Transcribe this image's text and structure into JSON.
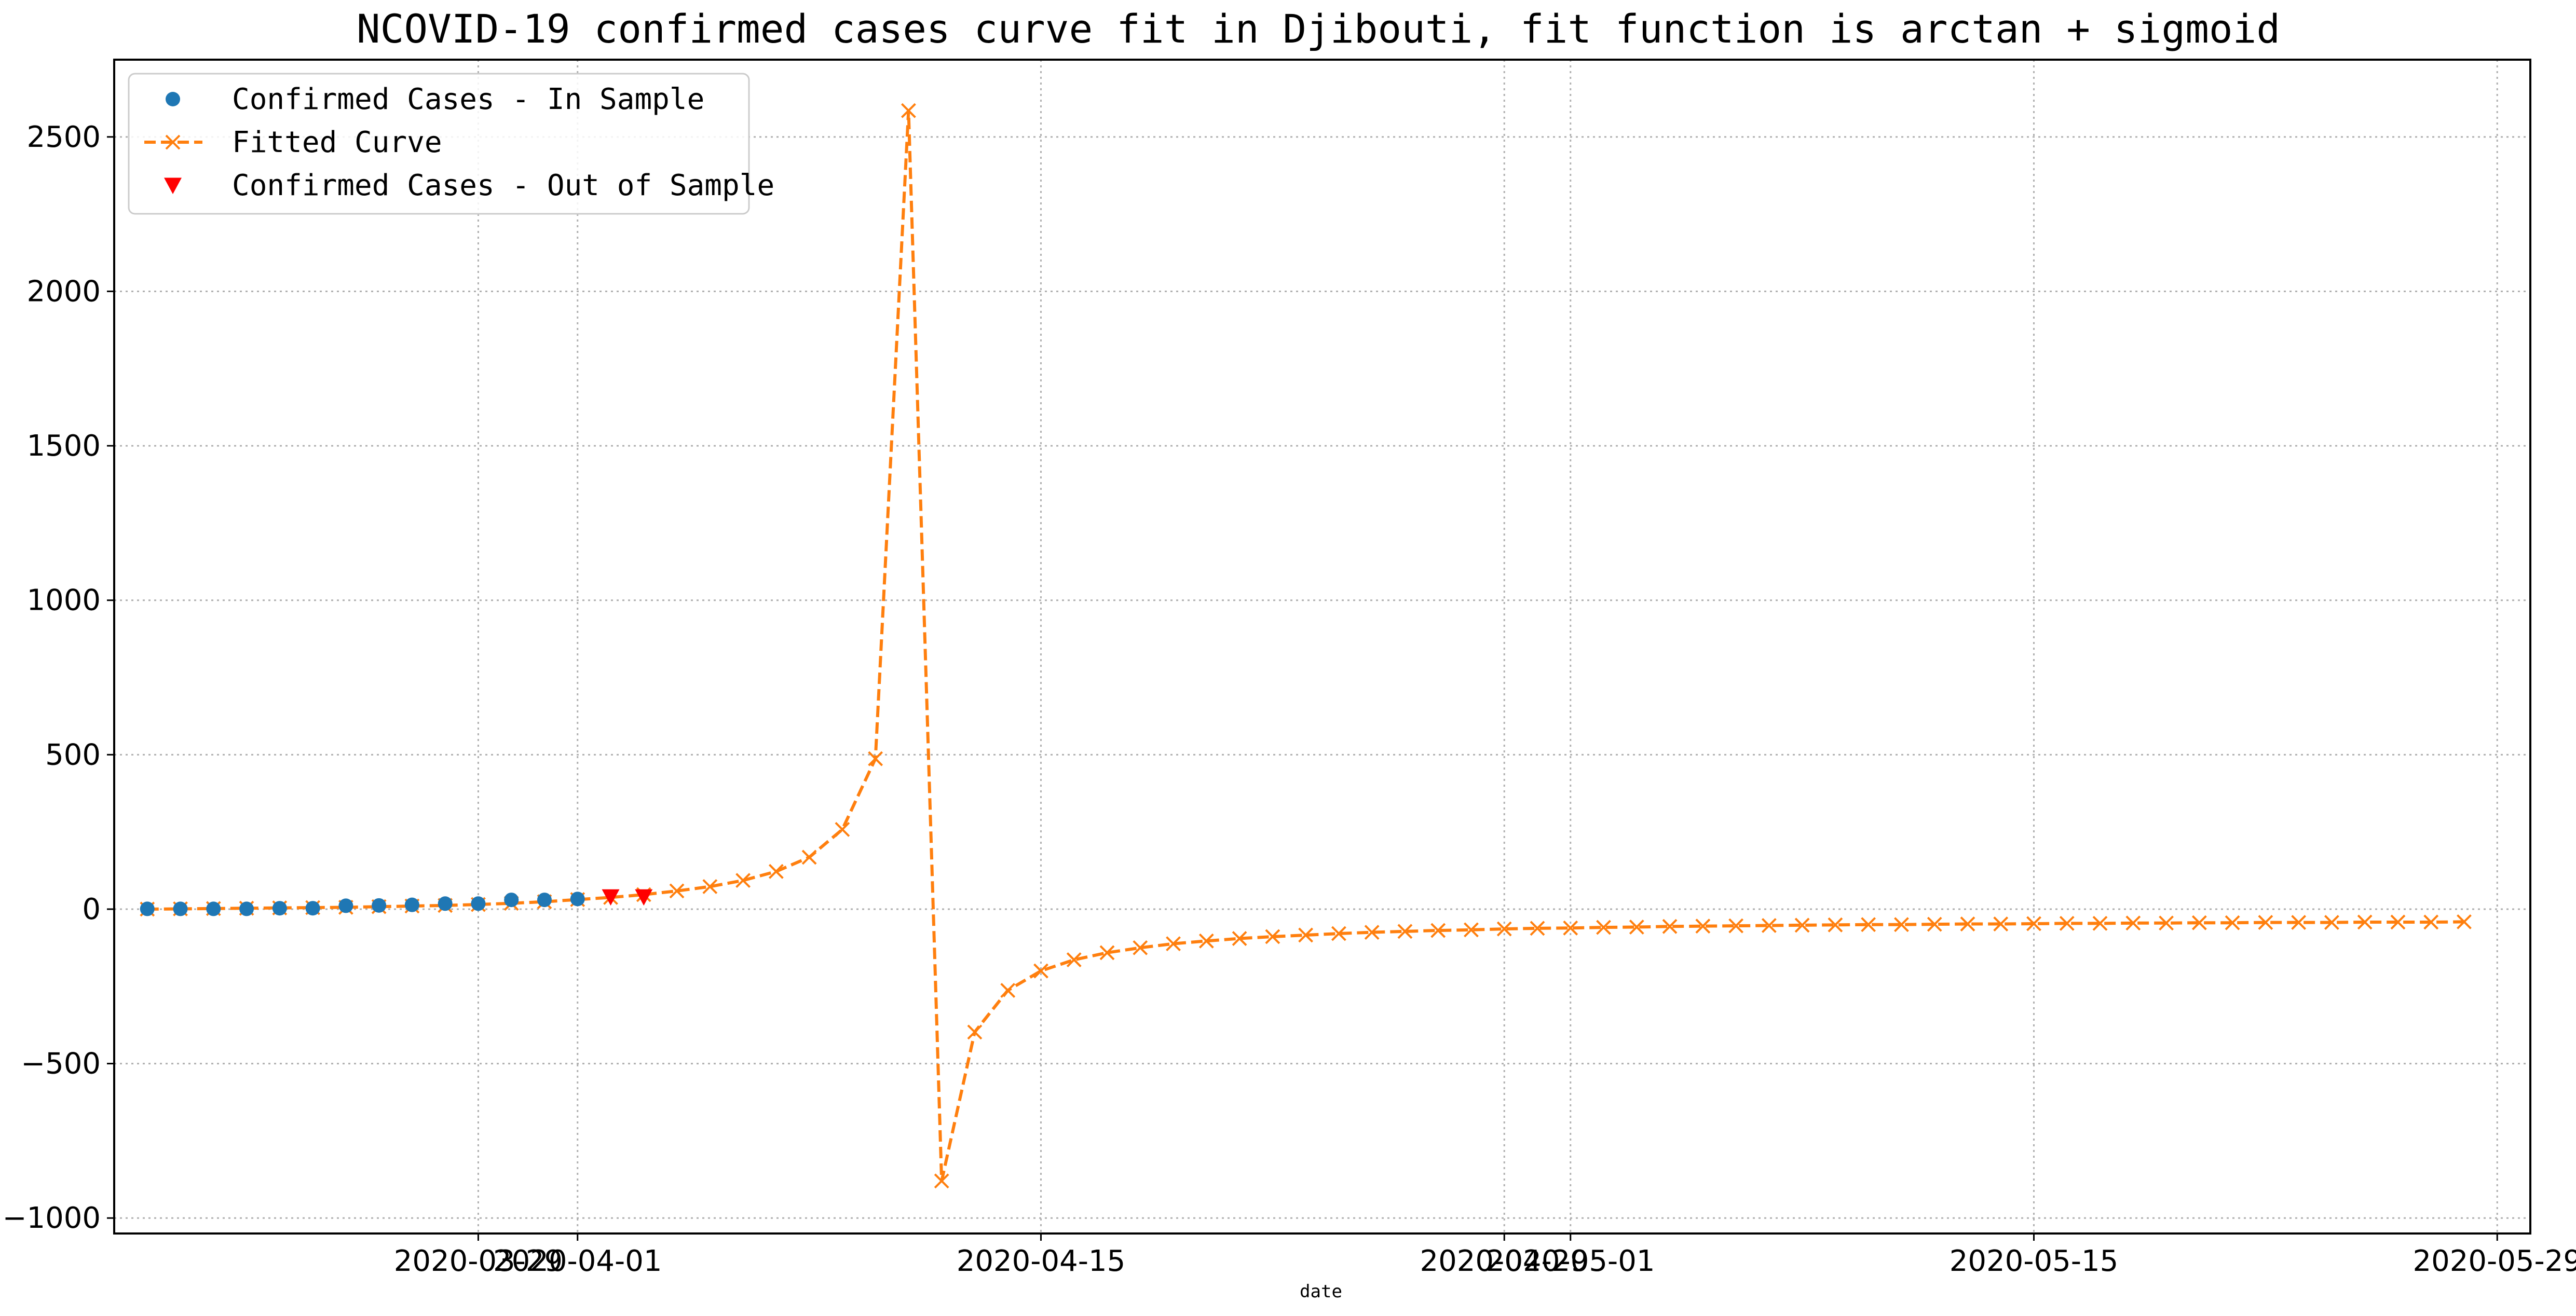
{
  "chart_data": {
    "type": "line",
    "title": "NCOVID-19 confirmed cases curve fit in Djibouti, fit function is arctan + sigmoid",
    "xlabel": "date",
    "ylabel": "",
    "x_axis_type": "date",
    "xlim": [
      "2020-03-18",
      "2020-05-30"
    ],
    "ylim": [
      -1050,
      2750
    ],
    "grid": true,
    "grid_style": "dotted",
    "legend_position": "top-left",
    "x_ticks": [
      {
        "date": "2020-03-29",
        "label": "2020-03-29"
      },
      {
        "date": "2020-04-01",
        "label": "2020-04-01"
      },
      {
        "date": "2020-04-15",
        "label": "2020-04-15"
      },
      {
        "date": "2020-04-29",
        "label": "2020-04-29"
      },
      {
        "date": "2020-05-01",
        "label": "2020-05-01"
      },
      {
        "date": "2020-05-15",
        "label": "2020-05-15"
      },
      {
        "date": "2020-05-29",
        "label": "2020-05-29"
      }
    ],
    "y_ticks": [
      -1000,
      -500,
      0,
      500,
      1000,
      1500,
      2000,
      2500
    ],
    "colors": {
      "in_sample": "#1f77b4",
      "fitted": "#ff7f0e",
      "out_sample": "#ff0000",
      "grid": "#b0b0b0"
    },
    "series": [
      {
        "name": "Confirmed Cases - In Sample",
        "style": "dots",
        "x": [
          "2020-03-19",
          "2020-03-20",
          "2020-03-21",
          "2020-03-22",
          "2020-03-23",
          "2020-03-24",
          "2020-03-25",
          "2020-03-26",
          "2020-03-27",
          "2020-03-28",
          "2020-03-29",
          "2020-03-30",
          "2020-03-31",
          "2020-04-01"
        ],
        "y": [
          1,
          1,
          1,
          1,
          3,
          3,
          11,
          12,
          14,
          18,
          18,
          30,
          30,
          33
        ]
      },
      {
        "name": "Fitted Curve",
        "style": "dashed-line-x-markers",
        "x": [
          "2020-03-19",
          "2020-03-20",
          "2020-03-21",
          "2020-03-22",
          "2020-03-23",
          "2020-03-24",
          "2020-03-25",
          "2020-03-26",
          "2020-03-27",
          "2020-03-28",
          "2020-03-29",
          "2020-03-30",
          "2020-03-31",
          "2020-04-01",
          "2020-04-02",
          "2020-04-03",
          "2020-04-04",
          "2020-04-05",
          "2020-04-06",
          "2020-04-07",
          "2020-04-08",
          "2020-04-09",
          "2020-04-10",
          "2020-04-11",
          "2020-04-12",
          "2020-04-13",
          "2020-04-14",
          "2020-04-15",
          "2020-04-16",
          "2020-04-17",
          "2020-04-18",
          "2020-04-19",
          "2020-04-20",
          "2020-04-21",
          "2020-04-22",
          "2020-04-23",
          "2020-04-24",
          "2020-04-25",
          "2020-04-26",
          "2020-04-27",
          "2020-04-28",
          "2020-04-29",
          "2020-04-30",
          "2020-05-01",
          "2020-05-02",
          "2020-05-03",
          "2020-05-04",
          "2020-05-05",
          "2020-05-06",
          "2020-05-07",
          "2020-05-08",
          "2020-05-09",
          "2020-05-10",
          "2020-05-11",
          "2020-05-12",
          "2020-05-13",
          "2020-05-14",
          "2020-05-15",
          "2020-05-16",
          "2020-05-17",
          "2020-05-18",
          "2020-05-19",
          "2020-05-20",
          "2020-05-21",
          "2020-05-22",
          "2020-05-23",
          "2020-05-24",
          "2020-05-25",
          "2020-05-26",
          "2020-05-27",
          "2020-05-28"
        ],
        "y": [
          0,
          1,
          2,
          3,
          4,
          5,
          6,
          8,
          10,
          12,
          15,
          19,
          24,
          31,
          38,
          47,
          59,
          73,
          93,
          122,
          168,
          258,
          487,
          2585,
          -880,
          -398,
          -263,
          -200,
          -164,
          -141,
          -125,
          -112,
          -103,
          -95,
          -89,
          -84,
          -79,
          -75,
          -72,
          -69,
          -67,
          -64,
          -62,
          -61,
          -59,
          -58,
          -56,
          -55,
          -54,
          -53,
          -52,
          -51,
          -50,
          -50,
          -49,
          -48,
          -48,
          -47,
          -46,
          -46,
          -45,
          -45,
          -44,
          -44,
          -43,
          -43,
          -43,
          -42,
          -42,
          -42,
          -41
        ]
      },
      {
        "name": "Confirmed Cases - Out of Sample",
        "style": "triangle-down",
        "x": [
          "2020-04-02",
          "2020-04-03"
        ],
        "y": [
          40,
          40
        ]
      }
    ]
  }
}
